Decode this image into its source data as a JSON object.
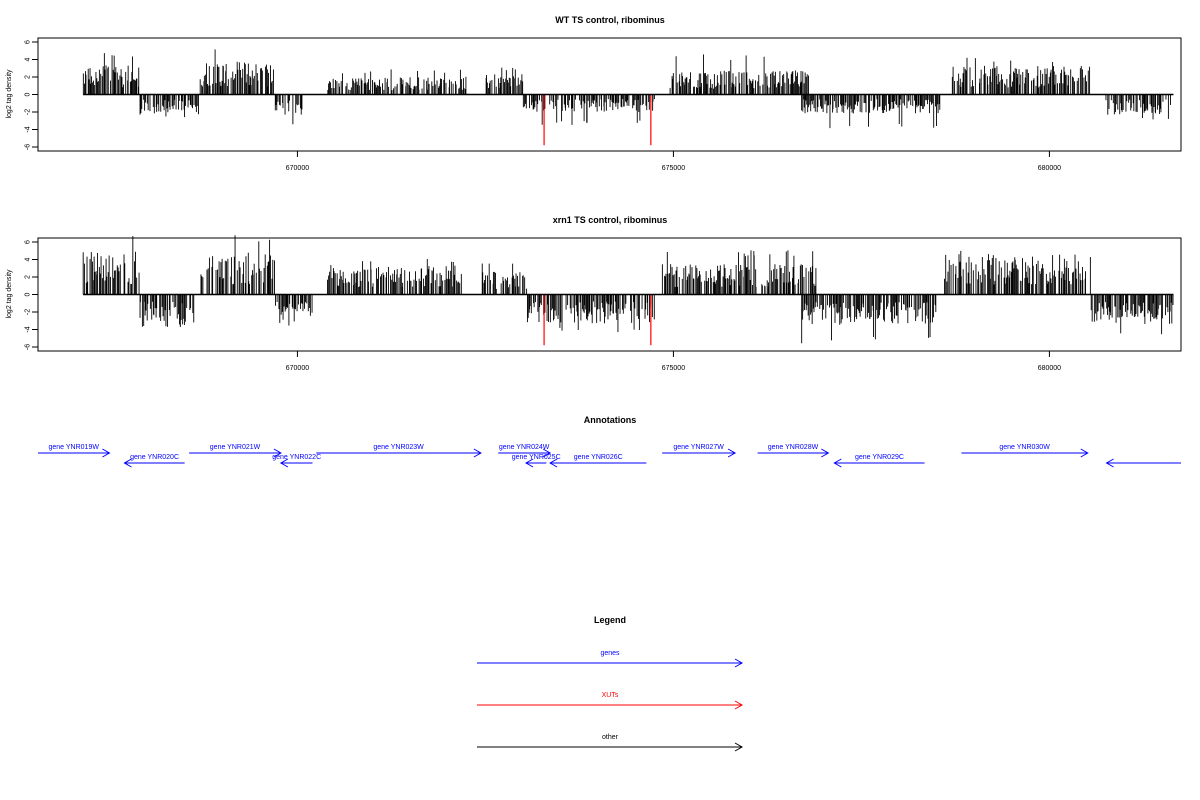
{
  "chart_data": [
    {
      "type": "bar",
      "title": "WT TS control, ribominus",
      "ylabel": "log2 tag density",
      "xlabel": "",
      "xlim": [
        666550,
        681750
      ],
      "ylim": [
        -6,
        6
      ],
      "x_ticks": [
        670000,
        675000,
        680000
      ],
      "x_tick_labels": [
        "670000",
        "675000",
        "680000"
      ],
      "y_ticks": [
        -6,
        -4,
        -2,
        0,
        2,
        4,
        6
      ],
      "y_tick_labels": [
        "-6",
        "-4",
        "-2",
        "0",
        "2",
        "4",
        "6"
      ],
      "grid": false,
      "series": [
        {
          "color": "#000000",
          "segments": [
            {
              "x_start": 667150,
              "x_end": 667900,
              "strand": 1,
              "mean": 2.3,
              "max": 5.0
            },
            {
              "x_start": 667900,
              "x_end": 668700,
              "strand": -1,
              "mean": 1.6,
              "max": 2.9
            },
            {
              "x_start": 668700,
              "x_end": 669700,
              "strand": 1,
              "mean": 2.6,
              "max": 5.7
            },
            {
              "x_start": 669700,
              "x_end": 670080,
              "strand": -1,
              "mean": 1.8,
              "max": 4.0
            },
            {
              "x_start": 670400,
              "x_end": 671050,
              "strand": 1,
              "mean": 1.3,
              "max": 2.8
            },
            {
              "x_start": 671050,
              "x_end": 672250,
              "strand": 1,
              "mean": 1.4,
              "max": 2.9
            },
            {
              "x_start": 672500,
              "x_end": 673000,
              "strand": 1,
              "mean": 1.6,
              "max": 3.2
            },
            {
              "x_start": 673000,
              "x_end": 674750,
              "strand": -1,
              "mean": 1.4,
              "max": 3.5
            },
            {
              "x_start": 674950,
              "x_end": 676800,
              "strand": 1,
              "mean": 1.9,
              "max": 4.6
            },
            {
              "x_start": 676700,
              "x_end": 678550,
              "strand": -1,
              "mean": 1.5,
              "max": 3.9
            },
            {
              "x_start": 678700,
              "x_end": 680550,
              "strand": 1,
              "mean": 2.3,
              "max": 4.3
            },
            {
              "x_start": 680750,
              "x_end": 681650,
              "strand": -1,
              "mean": 1.6,
              "max": 3.0
            }
          ]
        },
        {
          "color": "#ff0000",
          "bars": [
            {
              "x": 673280,
              "y": -5.8
            },
            {
              "x": 674700,
              "y": -5.8
            }
          ]
        }
      ]
    },
    {
      "type": "bar",
      "title": "xrn1 TS control, ribominus",
      "ylabel": "log2 tag density",
      "xlabel": "",
      "xlim": [
        666550,
        681750
      ],
      "ylim": [
        -6,
        6
      ],
      "x_ticks": [
        670000,
        675000,
        680000
      ],
      "x_tick_labels": [
        "670000",
        "675000",
        "680000"
      ],
      "y_ticks": [
        -6,
        -4,
        -2,
        0,
        2,
        4,
        6
      ],
      "y_tick_labels": [
        "-6",
        "-4",
        "-2",
        "0",
        "2",
        "4",
        "6"
      ],
      "grid": false,
      "series": [
        {
          "color": "#000000",
          "segments": [
            {
              "x_start": 667150,
              "x_end": 667900,
              "strand": 1,
              "mean": 3.4,
              "max": 6.8
            },
            {
              "x_start": 667900,
              "x_end": 668650,
              "strand": -1,
              "mean": 2.2,
              "max": 3.9
            },
            {
              "x_start": 668700,
              "x_end": 669700,
              "strand": 1,
              "mean": 3.3,
              "max": 6.8
            },
            {
              "x_start": 669700,
              "x_end": 670200,
              "strand": -1,
              "mean": 2.3,
              "max": 3.6
            },
            {
              "x_start": 670400,
              "x_end": 671050,
              "strand": 1,
              "mean": 2.2,
              "max": 3.9
            },
            {
              "x_start": 671050,
              "x_end": 672200,
              "strand": 1,
              "mean": 2.3,
              "max": 4.2
            },
            {
              "x_start": 672450,
              "x_end": 673050,
              "strand": 1,
              "mean": 1.8,
              "max": 3.8
            },
            {
              "x_start": 673050,
              "x_end": 674750,
              "strand": -1,
              "mean": 2.3,
              "max": 4.3
            },
            {
              "x_start": 674850,
              "x_end": 676900,
              "strand": 1,
              "mean": 2.4,
              "max": 5.1
            },
            {
              "x_start": 676700,
              "x_end": 678500,
              "strand": -1,
              "mean": 2.4,
              "max": 5.6
            },
            {
              "x_start": 678600,
              "x_end": 680550,
              "strand": 1,
              "mean": 3.2,
              "max": 5.4
            },
            {
              "x_start": 680550,
              "x_end": 681650,
              "strand": -1,
              "mean": 2.4,
              "max": 4.6
            }
          ]
        },
        {
          "color": "#ff0000",
          "bars": [
            {
              "x": 673280,
              "y": -5.8
            },
            {
              "x": 674700,
              "y": -5.8
            }
          ]
        }
      ]
    }
  ],
  "annotations": {
    "title": "Annotations",
    "color": "#0000ff",
    "genes": [
      {
        "label": "gene YNR019W",
        "start": 666130,
        "end": 667500,
        "strand": 1,
        "row": 0
      },
      {
        "label": "gene YNR020C",
        "start": 667700,
        "end": 668500,
        "strand": -1,
        "row": 1
      },
      {
        "label": "gene YNR021W",
        "start": 668560,
        "end": 669780,
        "strand": 1,
        "row": 0
      },
      {
        "label": "gene YNR022C",
        "start": 669780,
        "end": 670200,
        "strand": -1,
        "row": 1
      },
      {
        "label": "gene YNR023W",
        "start": 670250,
        "end": 672440,
        "strand": 1,
        "row": 0
      },
      {
        "label": "gene YNR024W",
        "start": 672670,
        "end": 673360,
        "strand": 1,
        "row": 0
      },
      {
        "label": "gene YNR025C",
        "start": 673040,
        "end": 673310,
        "strand": -1,
        "row": 1
      },
      {
        "label": "gene YNR026C",
        "start": 673360,
        "end": 674640,
        "strand": -1,
        "row": 1
      },
      {
        "label": "gene YNR027W",
        "start": 674850,
        "end": 675820,
        "strand": 1,
        "row": 0
      },
      {
        "label": "gene YNR028W",
        "start": 676120,
        "end": 677060,
        "strand": 1,
        "row": 0
      },
      {
        "label": "gene YNR029C",
        "start": 677140,
        "end": 678340,
        "strand": -1,
        "row": 1
      },
      {
        "label": "gene YNR030W",
        "start": 678830,
        "end": 680510,
        "strand": 1,
        "row": 0
      },
      {
        "label": "",
        "start": 680760,
        "end": 682150,
        "strand": -1,
        "row": 1
      }
    ]
  },
  "legend": {
    "title": "Legend",
    "items": [
      {
        "label": "genes",
        "color": "#0000ff"
      },
      {
        "label": "XUTs",
        "color": "#ff0000"
      },
      {
        "label": "other",
        "color": "#000000"
      }
    ]
  }
}
